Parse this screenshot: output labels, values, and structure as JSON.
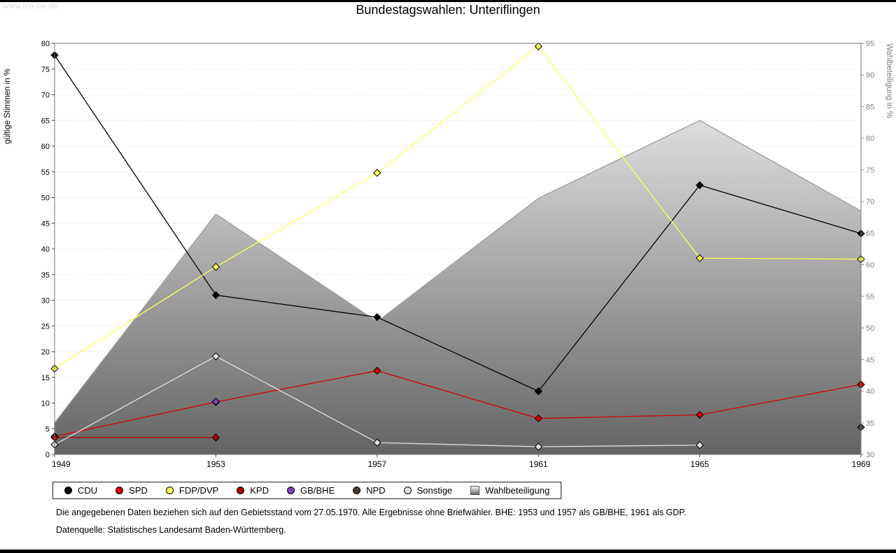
{
  "page": {
    "watermark": "www.leo-bw.de",
    "title": "Bundestagswahlen: Unteriflingen",
    "footnote1": "Die angegebenen Daten beziehen sich auf den Gebietsstand vom 27.05.1970. Alle Ergebnisse ohne Briefwähler. BHE: 1953 und 1957 als GB/BHE, 1961 als GDP.",
    "footnote2": "Datenquelle: Statistisches Landesamt Baden-Württemberg."
  },
  "chart_data": {
    "type": "line",
    "title": "Bundestagswahlen: Unteriflingen",
    "x": [
      1949,
      1953,
      1957,
      1961,
      1965,
      1969
    ],
    "left_axis": {
      "label": "gültige Stimmen in %",
      "min": 0,
      "max": 80,
      "step": 5,
      "color": "#000000"
    },
    "right_axis": {
      "label": "Wahlbeteiligung in %",
      "min": 30,
      "max": 95,
      "step": 5,
      "color": "#808080"
    },
    "grid": "horizontal-dotted",
    "legend_position": "bottom",
    "series": [
      {
        "name": "CDU",
        "color": "#000000",
        "axis": "left",
        "values": [
          77.7,
          31.0,
          26.7,
          12.3,
          52.4,
          43.0
        ]
      },
      {
        "name": "SPD",
        "color": "#d40000",
        "axis": "left",
        "values": [
          3.5,
          10.2,
          16.3,
          7.0,
          7.7,
          13.6
        ]
      },
      {
        "name": "FDP/DVP",
        "color": "#ffff55",
        "axis": "left",
        "values": [
          16.7,
          36.5,
          54.8,
          79.4,
          38.2,
          38.0
        ]
      },
      {
        "name": "KPD",
        "color": "#aa0000",
        "axis": "left",
        "values": [
          3.3,
          3.3,
          null,
          null,
          null,
          null
        ]
      },
      {
        "name": "GB/BHE",
        "color": "#8040c0",
        "axis": "left",
        "values": [
          null,
          10.3,
          null,
          null,
          null,
          null
        ]
      },
      {
        "name": "NPD",
        "color": "#4a3b31",
        "axis": "left",
        "values": [
          null,
          null,
          null,
          null,
          null,
          5.3
        ]
      },
      {
        "name": "Sonstige",
        "color": "#e0e0e0",
        "axis": "left",
        "values": [
          1.9,
          19.1,
          2.3,
          1.5,
          1.8,
          null
        ]
      }
    ],
    "area_series": {
      "name": "Wahlbeteiligung",
      "axis": "right",
      "values": [
        35.0,
        68.0,
        51.0,
        70.5,
        82.8,
        68.5
      ],
      "fill_top": "#fafafa",
      "fill_bottom": "#646464",
      "stroke": "#a0a0a0"
    }
  }
}
